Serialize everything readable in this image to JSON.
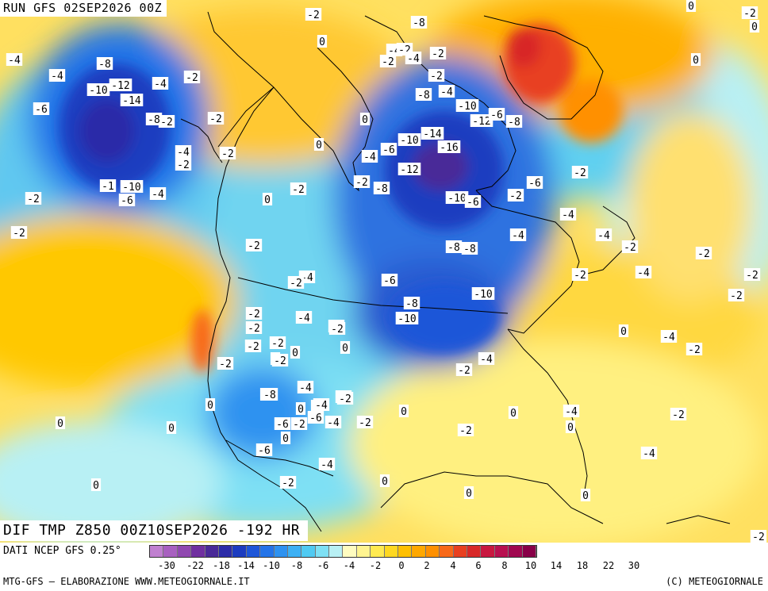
{
  "header": {
    "run_label": "RUN GFS 02SEP2026 00Z"
  },
  "map": {
    "title": "DIF TMP Z850 00Z10SEP2026 -192 HR",
    "labels": [
      {
        "t": "-2"
      },
      {
        "t": "-6"
      },
      {
        "t": "-4"
      },
      {
        "t": "-2"
      },
      {
        "t": "-8"
      },
      {
        "t": "0"
      },
      {
        "t": "-4"
      },
      {
        "t": "-2"
      },
      {
        "t": "-4"
      },
      {
        "t": "-2"
      },
      {
        "t": "-2"
      },
      {
        "t": "-8"
      },
      {
        "t": "-4"
      },
      {
        "t": "-10"
      },
      {
        "t": "-12"
      },
      {
        "t": "-4"
      },
      {
        "t": "-2"
      },
      {
        "t": "-14"
      },
      {
        "t": "-6"
      },
      {
        "t": "-8"
      },
      {
        "t": "-2"
      },
      {
        "t": "-4"
      },
      {
        "t": "-2"
      },
      {
        "t": "-2"
      },
      {
        "t": "-1"
      },
      {
        "t": "-10"
      },
      {
        "t": "-4"
      },
      {
        "t": "-6"
      },
      {
        "t": "-2"
      },
      {
        "t": "0"
      },
      {
        "t": "-2"
      },
      {
        "t": "-2"
      },
      {
        "t": "0"
      },
      {
        "t": "-2"
      },
      {
        "t": "-2"
      },
      {
        "t": "-4"
      },
      {
        "t": "0"
      },
      {
        "t": "-2"
      },
      {
        "t": "-4"
      },
      {
        "t": "-4"
      },
      {
        "t": "-2"
      },
      {
        "t": "-4"
      },
      {
        "t": "-8"
      },
      {
        "t": "-10"
      },
      {
        "t": "-14"
      },
      {
        "t": "-16"
      },
      {
        "t": "-12"
      },
      {
        "t": "-6"
      },
      {
        "t": "-8"
      },
      {
        "t": "-10"
      },
      {
        "t": "-12"
      },
      {
        "t": "-6"
      },
      {
        "t": "-8"
      },
      {
        "t": "-10"
      },
      {
        "t": "-6"
      },
      {
        "t": "-8"
      },
      {
        "t": "-8"
      },
      {
        "t": "-2"
      },
      {
        "t": "-6"
      },
      {
        "t": "-4"
      },
      {
        "t": "-8"
      },
      {
        "t": "-10"
      },
      {
        "t": "-10"
      },
      {
        "t": "-2"
      },
      {
        "t": "-4"
      },
      {
        "t": "-4"
      },
      {
        "t": "-2"
      },
      {
        "t": "-2"
      },
      {
        "t": "-2"
      },
      {
        "t": "-4"
      },
      {
        "t": "-2"
      },
      {
        "t": "-2"
      },
      {
        "t": "-4"
      },
      {
        "t": "-2"
      },
      {
        "t": "-2"
      },
      {
        "t": "-2"
      },
      {
        "t": "-4"
      },
      {
        "t": "-2"
      },
      {
        "t": "-2"
      },
      {
        "t": "0"
      },
      {
        "t": "0"
      },
      {
        "t": "0"
      },
      {
        "t": "-2"
      },
      {
        "t": "-2"
      },
      {
        "t": "-2"
      },
      {
        "t": "-4"
      },
      {
        "t": "-2"
      },
      {
        "t": "0"
      },
      {
        "t": "-4"
      },
      {
        "t": "-6"
      },
      {
        "t": "-2"
      },
      {
        "t": "-2"
      },
      {
        "t": "-4"
      },
      {
        "t": "-2"
      },
      {
        "t": "0"
      },
      {
        "t": "0"
      },
      {
        "t": "-8"
      },
      {
        "t": "0"
      },
      {
        "t": "-6"
      },
      {
        "t": "-4"
      },
      {
        "t": "-4"
      },
      {
        "t": "-2"
      },
      {
        "t": "-2"
      },
      {
        "t": "-6"
      },
      {
        "t": "0"
      },
      {
        "t": "0"
      },
      {
        "t": "0"
      },
      {
        "t": "0"
      },
      {
        "t": "0"
      },
      {
        "t": "0"
      },
      {
        "t": "-2"
      },
      {
        "t": "0"
      },
      {
        "t": "-4"
      },
      {
        "t": "0"
      },
      {
        "t": "0"
      },
      {
        "t": "-2"
      },
      {
        "t": "-4"
      },
      {
        "t": "0"
      },
      {
        "t": "0"
      },
      {
        "t": "0"
      },
      {
        "t": "-2"
      },
      {
        "t": "0"
      },
      {
        "t": "0"
      },
      {
        "t": "-2"
      },
      {
        "t": "0"
      },
      {
        "t": "0"
      }
    ]
  },
  "legend": {
    "data_credit": "DATI NCEP GFS 0.25°",
    "colors": [
      "#c080d0",
      "#a860c0",
      "#9048b0",
      "#7030a0",
      "#4a2a98",
      "#2c2ca8",
      "#1c3cc0",
      "#1e56d8",
      "#2474e8",
      "#2e92f0",
      "#3cb0f4",
      "#50caf2",
      "#7ee0f4",
      "#b8f0f4",
      "#fffcc0",
      "#fff490",
      "#ffea50",
      "#ffd820",
      "#ffc000",
      "#ffa800",
      "#ff9000",
      "#f86818",
      "#e84020",
      "#d82828",
      "#c81840",
      "#b81050",
      "#a00850",
      "#880048"
    ],
    "ticks": [
      "-30",
      "-22",
      "-18",
      "-14",
      "-10",
      "-8",
      "-6",
      "-4",
      "-2",
      "0",
      "2",
      "4",
      "6",
      "8",
      "10",
      "14",
      "18",
      "22",
      "30"
    ],
    "elaboration": "MTG-GFS — ELABORAZIONE WWW.METEOGIORNALE.IT",
    "copyright": "(C) METEOGIORNALE"
  }
}
